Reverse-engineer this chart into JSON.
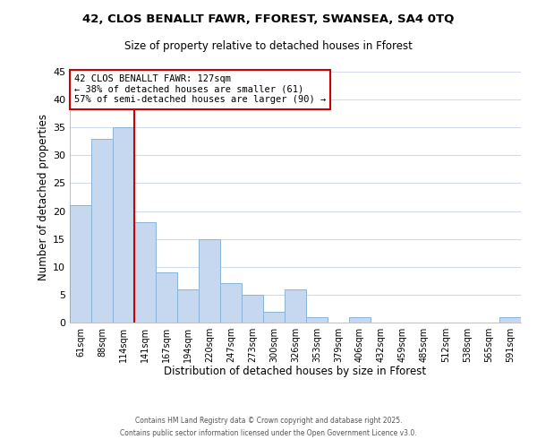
{
  "title_line1": "42, CLOS BENALLT FAWR, FFOREST, SWANSEA, SA4 0TQ",
  "title_line2": "Size of property relative to detached houses in Fforest",
  "xlabel": "Distribution of detached houses by size in Fforest",
  "ylabel": "Number of detached properties",
  "bar_labels": [
    "61sqm",
    "88sqm",
    "114sqm",
    "141sqm",
    "167sqm",
    "194sqm",
    "220sqm",
    "247sqm",
    "273sqm",
    "300sqm",
    "326sqm",
    "353sqm",
    "379sqm",
    "406sqm",
    "432sqm",
    "459sqm",
    "485sqm",
    "512sqm",
    "538sqm",
    "565sqm",
    "591sqm"
  ],
  "bar_values": [
    21,
    33,
    35,
    18,
    9,
    6,
    15,
    7,
    5,
    2,
    6,
    1,
    0,
    1,
    0,
    0,
    0,
    0,
    0,
    0,
    1
  ],
  "bar_color": "#c5d8f0",
  "bar_edge_color": "#8ab4d8",
  "vline_x_index": 2,
  "vline_color": "#cc0000",
  "annotation_title": "42 CLOS BENALLT FAWR: 127sqm",
  "annotation_line1": "← 38% of detached houses are smaller (61)",
  "annotation_line2": "57% of semi-detached houses are larger (90) →",
  "annotation_box_color": "#ffffff",
  "annotation_box_edge": "#cc0000",
  "ylim": [
    0,
    45
  ],
  "yticks": [
    0,
    5,
    10,
    15,
    20,
    25,
    30,
    35,
    40,
    45
  ],
  "footer_line1": "Contains HM Land Registry data © Crown copyright and database right 2025.",
  "footer_line2": "Contains public sector information licensed under the Open Government Licence v3.0.",
  "background_color": "#ffffff",
  "grid_color": "#d0dcea"
}
